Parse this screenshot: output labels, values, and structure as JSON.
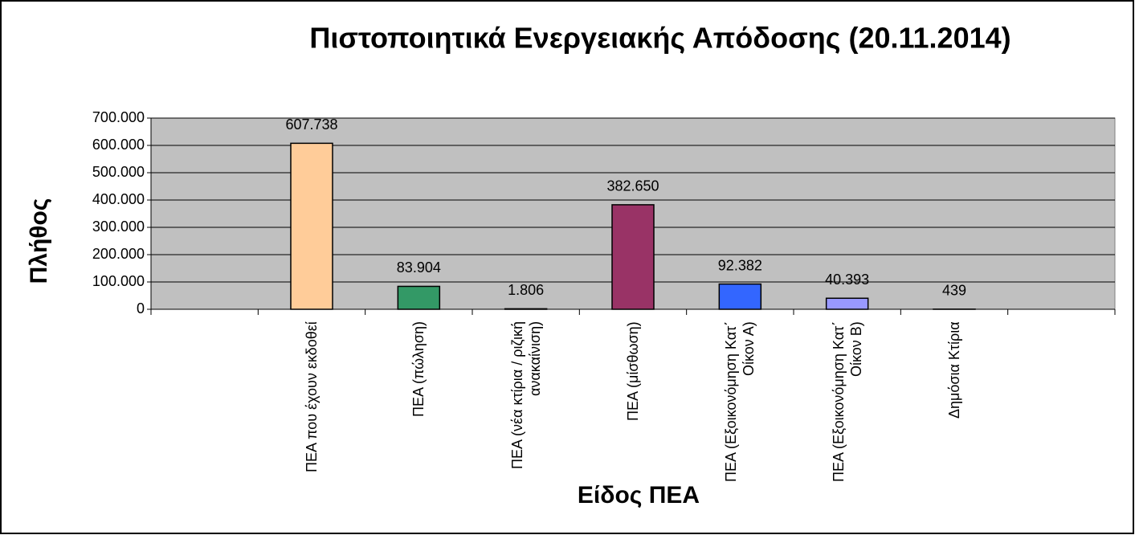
{
  "chart_data": {
    "type": "bar",
    "title": "Πιστοποιητικά Ενεργειακής Απόδοσης (20.11.2014)",
    "y_label": "Πλήθος",
    "x_label": "Είδος ΠΕΑ",
    "categories": [
      null,
      "ΠΕΑ που έχουν εκδοθεί",
      "ΠΕΑ (πώληση)",
      "ΠΕΑ (νέα κτίρια / ριζική ανακαίνιση)",
      "ΠΕΑ (μίσθωση)",
      "ΠΕΑ (Εξοικονόμηση Κατ΄ Οίκον Α)",
      "ΠΕΑ (Εξοικονόμηση Κατ΄ Οίκον Β)",
      "Δημόσια Κτίρια",
      null
    ],
    "values": [
      null,
      607738,
      83904,
      1806,
      382650,
      92382,
      40393,
      439,
      null
    ],
    "value_labels": [
      null,
      "607.738",
      "83.904",
      "1.806",
      "382.650",
      "92.382",
      "40.393",
      "439",
      null
    ],
    "colors": [
      null,
      "#ffcc99",
      "#339966",
      "#333333",
      "#993366",
      "#3366ff",
      "#9999ff",
      "#333399",
      null
    ],
    "ylim": [
      0,
      700000
    ],
    "yticks": [
      0,
      {
        "value": 100000,
        "label": "100.000"
      },
      {
        "value": 200000,
        "label": "200.000"
      },
      {
        "value": 300000,
        "label": "300.000"
      },
      {
        "value": 400000,
        "label": "400.000"
      },
      {
        "value": 500000,
        "label": "500.000"
      },
      {
        "value": 600000,
        "label": "600.000"
      },
      {
        "value": 700000,
        "label": "700.000"
      }
    ],
    "grid": true,
    "plot_background": "#c0c0c0"
  }
}
